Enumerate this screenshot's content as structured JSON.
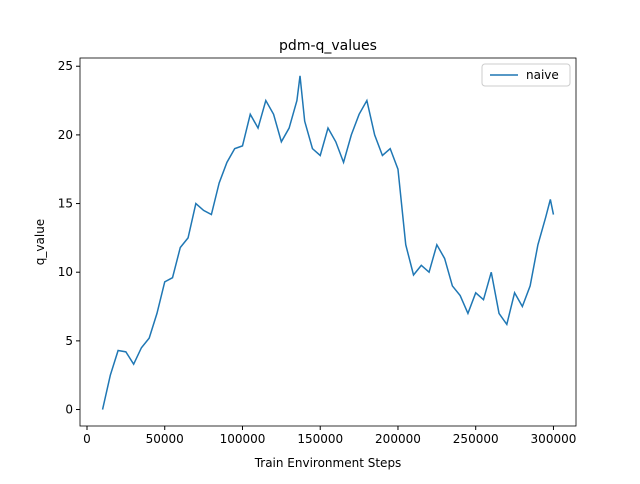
{
  "chart_data": {
    "type": "line",
    "title": "pdm-q_values",
    "x_label": "Train Environment Steps",
    "y_label": "q_value",
    "x": [
      10000,
      15000,
      20000,
      25000,
      30000,
      35000,
      40000,
      45000,
      50000,
      55000,
      60000,
      65000,
      70000,
      75000,
      80000,
      85000,
      90000,
      95000,
      100000,
      105000,
      110000,
      115000,
      120000,
      125000,
      130000,
      135000,
      137000,
      140000,
      145000,
      150000,
      155000,
      160000,
      165000,
      170000,
      175000,
      180000,
      185000,
      190000,
      195000,
      200000,
      205000,
      210000,
      215000,
      220000,
      225000,
      230000,
      235000,
      240000,
      245000,
      250000,
      255000,
      260000,
      265000,
      270000,
      275000,
      280000,
      285000,
      290000,
      295000,
      298000,
      300000
    ],
    "series": [
      {
        "name": "naive",
        "color": "#1f77b4",
        "values": [
          0,
          2.5,
          4.3,
          4.2,
          3.3,
          4.5,
          5.2,
          7,
          9.3,
          9.6,
          11.8,
          12.5,
          15,
          14.5,
          14.2,
          16.5,
          18,
          19,
          19.2,
          21.5,
          20.5,
          22.5,
          21.5,
          19.5,
          20.5,
          22.5,
          24.3,
          21,
          19,
          18.5,
          20.5,
          19.5,
          18,
          20,
          21.5,
          22.5,
          20,
          18.5,
          19,
          17.5,
          12,
          9.8,
          10.5,
          10,
          12,
          11,
          9,
          8.3,
          7,
          8.5,
          8,
          10,
          7,
          6.2,
          8.5,
          7.5,
          9,
          12,
          14,
          15.3,
          14.2
        ]
      }
    ],
    "xlim": [
      -4500,
      314500
    ],
    "ylim": [
      -1.2,
      25.6
    ],
    "xticks": [
      0,
      50000,
      100000,
      150000,
      200000,
      250000,
      300000
    ],
    "yticks": [
      0,
      5,
      10,
      15,
      20,
      25
    ],
    "legend": "upper right"
  }
}
